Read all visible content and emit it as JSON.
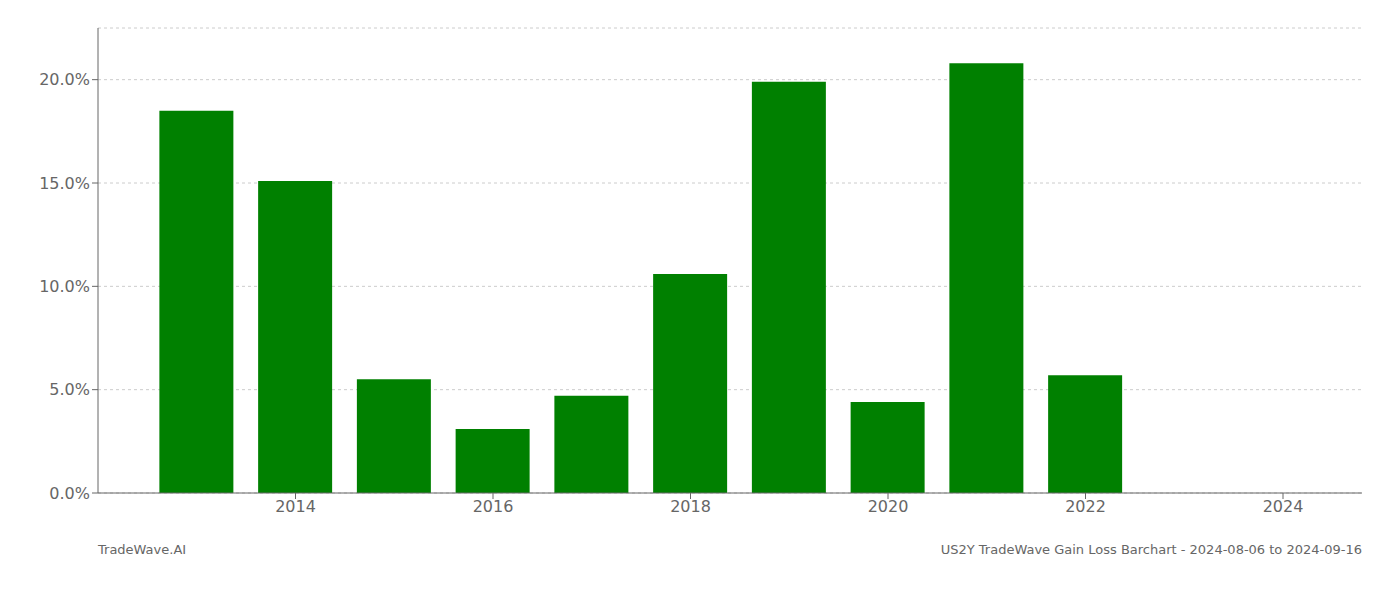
{
  "chart_data": {
    "type": "bar",
    "x": [
      2013,
      2014,
      2015,
      2016,
      2017,
      2018,
      2019,
      2020,
      2021,
      2022,
      2023
    ],
    "values": [
      0.185,
      0.151,
      0.055,
      0.031,
      0.047,
      0.106,
      0.199,
      0.044,
      0.208,
      0.057,
      0.0
    ],
    "color": "#008000",
    "xlim": [
      2012.0,
      2024.8
    ],
    "xticks": [
      2014,
      2016,
      2018,
      2020,
      2022,
      2024
    ],
    "ylim": [
      0,
      0.225
    ],
    "yticks": [
      {
        "value": 0.0,
        "label": "0.0%"
      },
      {
        "value": 0.05,
        "label": "5.0%"
      },
      {
        "value": 0.1,
        "label": "10.0%"
      },
      {
        "value": 0.15,
        "label": "15.0%"
      },
      {
        "value": 0.2,
        "label": "20.0%"
      }
    ],
    "grid": true,
    "annotations": [
      "TradeWave.AI",
      "US2Y TradeWave Gain Loss Barchart - 2024-08-06 to 2024-09-16"
    ]
  }
}
